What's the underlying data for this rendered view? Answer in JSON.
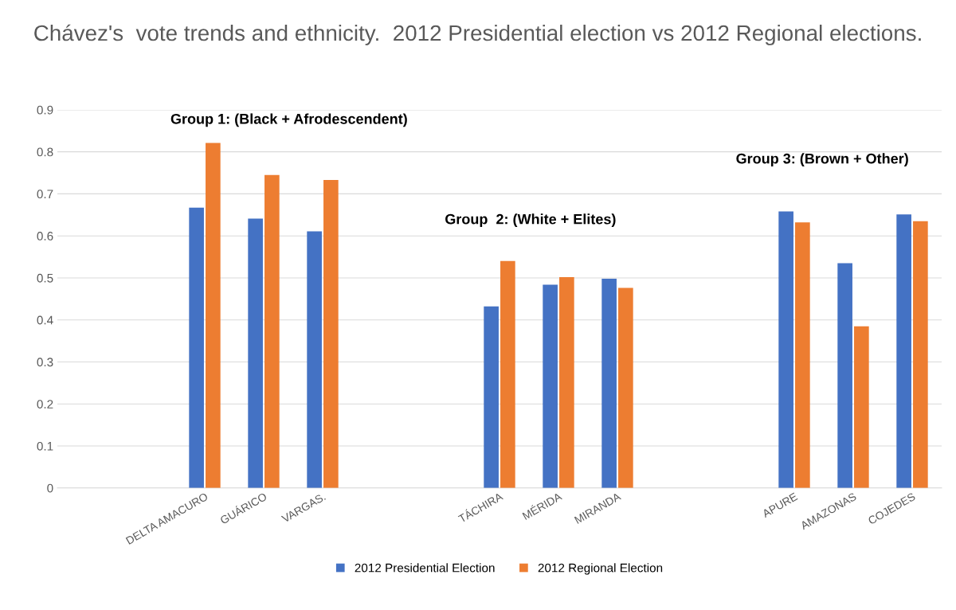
{
  "chart_data": {
    "type": "bar",
    "title": "Chávez's  vote trends and ethnicity.  2012 Presidential election vs 2012 Regional elections.",
    "categories": [
      null,
      null,
      "DELTA AMACURO",
      "GUÁRICO",
      "VARGAS.",
      null,
      null,
      "TÁCHIRA",
      "MÉRIDA",
      "MIRANDA",
      null,
      null,
      "APURE",
      "AMAZONAS",
      "COJEDES"
    ],
    "series": [
      {
        "name": "2012 Presidential Election",
        "color": "#4472c4",
        "values": [
          null,
          null,
          0.667,
          0.641,
          0.611,
          null,
          null,
          0.432,
          0.484,
          0.498,
          null,
          null,
          0.658,
          0.535,
          0.651
        ]
      },
      {
        "name": "2012 Regional Election",
        "color": "#ed7d31",
        "values": [
          null,
          null,
          0.821,
          0.745,
          0.733,
          null,
          null,
          0.54,
          0.502,
          0.476,
          null,
          null,
          0.632,
          0.385,
          0.635
        ]
      }
    ],
    "ylim": [
      0,
      0.9
    ],
    "yticks": [
      0,
      0.1,
      0.2,
      0.3,
      0.4,
      0.5,
      0.6,
      0.7,
      0.8,
      0.9
    ],
    "grid": "y",
    "legend": "bottom",
    "annotations": [
      "Group 1: (Black + Afrodescendent)",
      "Group  2: (White + Elites)",
      "Group 3: (Brown + Other)"
    ]
  }
}
